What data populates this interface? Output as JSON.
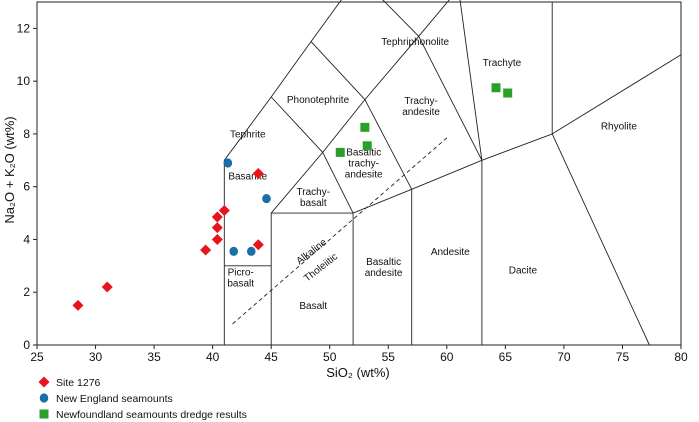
{
  "chart_data": {
    "type": "scatter",
    "xlabel": "SiO₂ (wt%)",
    "ylabel": "Na₂O + K₂O (wt%)",
    "xlim": [
      25,
      80
    ],
    "ylim": [
      0,
      13
    ],
    "xticks": [
      25,
      30,
      35,
      40,
      45,
      50,
      55,
      60,
      65,
      70,
      75,
      80
    ],
    "yticks": [
      0,
      2,
      4,
      6,
      8,
      10,
      12
    ],
    "legend_position": "bottom-left",
    "series": [
      {
        "name": "Site 1276",
        "marker": "diamond",
        "color": "#e8131b",
        "points": [
          [
            28.5,
            1.5
          ],
          [
            31.0,
            2.2
          ],
          [
            39.4,
            3.6
          ],
          [
            40.4,
            4.0
          ],
          [
            40.4,
            4.45
          ],
          [
            40.4,
            4.85
          ],
          [
            41.0,
            5.1
          ],
          [
            43.9,
            3.8
          ],
          [
            43.9,
            6.5
          ]
        ]
      },
      {
        "name": "New England seamounts",
        "marker": "circle",
        "color": "#1a6fa8",
        "points": [
          [
            41.3,
            6.9
          ],
          [
            41.8,
            3.55
          ],
          [
            43.3,
            3.55
          ],
          [
            44.6,
            5.55
          ]
        ]
      },
      {
        "name": "Newfoundland seamounts dredge results",
        "marker": "square",
        "color": "#2aa02a",
        "points": [
          [
            50.9,
            7.3
          ],
          [
            53.0,
            8.25
          ],
          [
            53.2,
            7.55
          ],
          [
            64.2,
            9.75
          ],
          [
            65.2,
            9.55
          ]
        ]
      }
    ],
    "fields": [
      {
        "label": [
          "Tephriphonolite"
        ],
        "x": 57.3,
        "y": 11.5
      },
      {
        "label": [
          "Phonotephrite"
        ],
        "x": 49.0,
        "y": 9.3
      },
      {
        "label": [
          "Trachy-",
          "andesite"
        ],
        "x": 57.8,
        "y": 9.05
      },
      {
        "label": [
          "Trachyte"
        ],
        "x": 64.7,
        "y": 10.7
      },
      {
        "label": [
          "Rhyolite"
        ],
        "x": 74.7,
        "y": 8.3
      },
      {
        "label": [
          "Tephrite"
        ],
        "x": 43.0,
        "y": 8.0
      },
      {
        "label": [
          "Basanite"
        ],
        "x": 43.0,
        "y": 6.4
      },
      {
        "label": [
          "Basaltic",
          "trachy-",
          "andesite"
        ],
        "x": 52.9,
        "y": 6.9
      },
      {
        "label": [
          "Trachy-",
          "basalt"
        ],
        "x": 48.6,
        "y": 5.6
      },
      {
        "label": [
          "Picro-",
          "basalt"
        ],
        "x": 42.4,
        "y": 2.55
      },
      {
        "label": [
          "Basalt"
        ],
        "x": 48.6,
        "y": 1.5
      },
      {
        "label": [
          "Basaltic",
          "andesite"
        ],
        "x": 54.6,
        "y": 2.95
      },
      {
        "label": [
          "Andesite"
        ],
        "x": 60.3,
        "y": 3.55
      },
      {
        "label": [
          "Dacite"
        ],
        "x": 66.5,
        "y": 2.85
      }
    ],
    "annotations": [
      {
        "text": "Alkaline",
        "x": 48.6,
        "y": 3.45,
        "rotate": -38
      },
      {
        "text": "Tholeiitic",
        "x": 49.4,
        "y": 2.85,
        "rotate": -38
      }
    ],
    "divider_line": [
      [
        41.7,
        0.8
      ],
      [
        60.0,
        7.85
      ]
    ]
  }
}
